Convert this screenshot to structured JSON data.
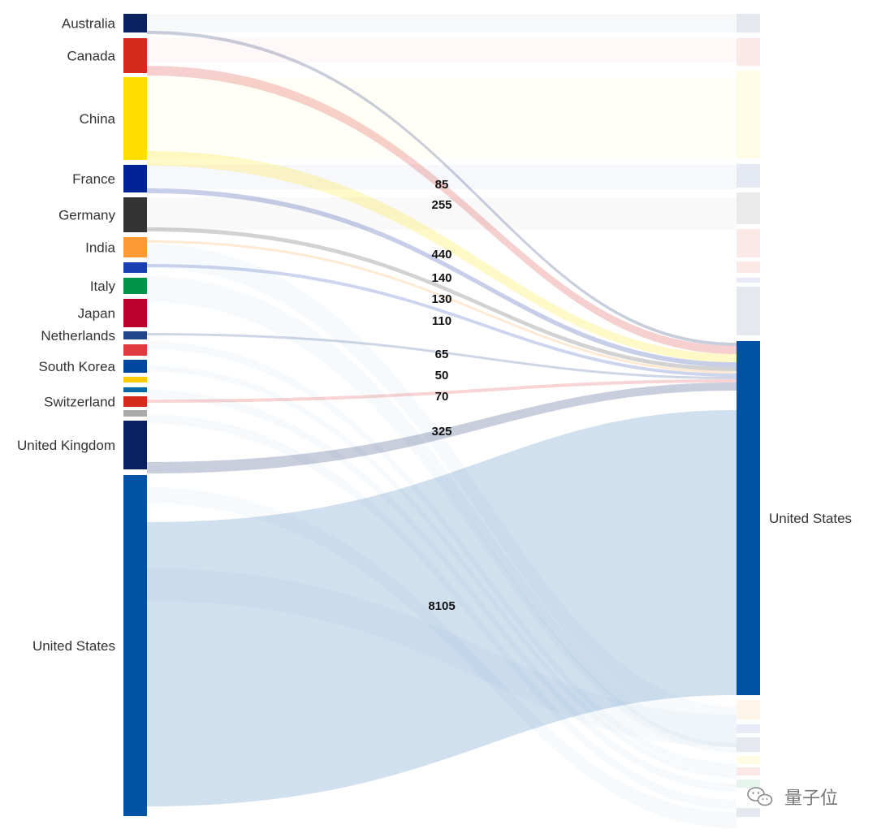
{
  "chart_data": {
    "type": "sankey",
    "flows": [
      {
        "source": "Australia",
        "target": "United States",
        "value": 85,
        "color": "#0a2160"
      },
      {
        "source": "Canada",
        "target": "United States",
        "value": 255,
        "color": "#d52b1e"
      },
      {
        "source": "China",
        "target": "United States",
        "value": 440,
        "color": "#ffde00"
      },
      {
        "source": "France",
        "target": "United States",
        "value": 140,
        "color": "#002395"
      },
      {
        "source": "Germany",
        "target": "United States",
        "value": 130,
        "color": "#333333"
      },
      {
        "source": "India",
        "target": "United States",
        "value": 110,
        "color": "#ff9933"
      },
      {
        "source": "",
        "target": "United States",
        "value": 65,
        "color": "#1a3fb0"
      },
      {
        "source": "Netherlands",
        "target": "United States",
        "value": 50,
        "color": "#21468b"
      },
      {
        "source": "",
        "target": "United States",
        "value": 70,
        "color": "#e03a3e"
      },
      {
        "source": "United Kingdom",
        "target": "United States",
        "value": 325,
        "color": "#0a2160"
      },
      {
        "source": "United States",
        "target": "United States",
        "value": 8105,
        "color": "#0052a5"
      }
    ]
  },
  "left_nodes": [
    {
      "label": "Australia",
      "color": "#0a2160"
    },
    {
      "label": "Canada",
      "color": "#d52b1e"
    },
    {
      "label": "China",
      "color": "#ffde00"
    },
    {
      "label": "France",
      "color": "#002395"
    },
    {
      "label": "Germany",
      "color": "#333333"
    },
    {
      "label": "India",
      "color": "#ff9933"
    },
    {
      "label": "",
      "color": "#1a3fb0"
    },
    {
      "label": "Italy",
      "color": "#009246"
    },
    {
      "label": "Japan",
      "color": "#bc002d"
    },
    {
      "label": "Netherlands",
      "color": "#21468b"
    },
    {
      "label": "",
      "color": "#e03a3e"
    },
    {
      "label": "South Korea",
      "color": "#0047a0"
    },
    {
      "label": "",
      "color": "#fecc00"
    },
    {
      "label": "",
      "color": "#006aa7"
    },
    {
      "label": "Switzerland",
      "color": "#d52b1e"
    },
    {
      "label": "",
      "color": "#aaaaaa"
    },
    {
      "label": "United Kingdom",
      "color": "#0a2160"
    },
    {
      "label": "United States",
      "color": "#0052a5"
    }
  ],
  "right_nodes": [
    {
      "label": "",
      "color": "#0a2160"
    },
    {
      "label": "",
      "color": "#d52b1e"
    },
    {
      "label": "",
      "color": "#ffde00"
    },
    {
      "label": "",
      "color": "#002395"
    },
    {
      "label": "",
      "color": "#333333"
    },
    {
      "label": "",
      "color": "#d52b1e"
    },
    {
      "label": "",
      "color": "#d52b1e"
    },
    {
      "label": "",
      "color": "#1a3fb0"
    },
    {
      "label": "",
      "color": "#0a2160"
    },
    {
      "label": "United States",
      "color": "#0052a5"
    },
    {
      "label": "",
      "color": "#ff9933"
    },
    {
      "label": "",
      "color": "#1a3fb0"
    },
    {
      "label": "",
      "color": "#0a2160"
    },
    {
      "label": "",
      "color": "#ffde00"
    },
    {
      "label": "",
      "color": "#d52b1e"
    },
    {
      "label": "",
      "color": "#009246"
    },
    {
      "label": "",
      "color": "#0a2160"
    }
  ],
  "watermark": {
    "text": "量子位"
  }
}
